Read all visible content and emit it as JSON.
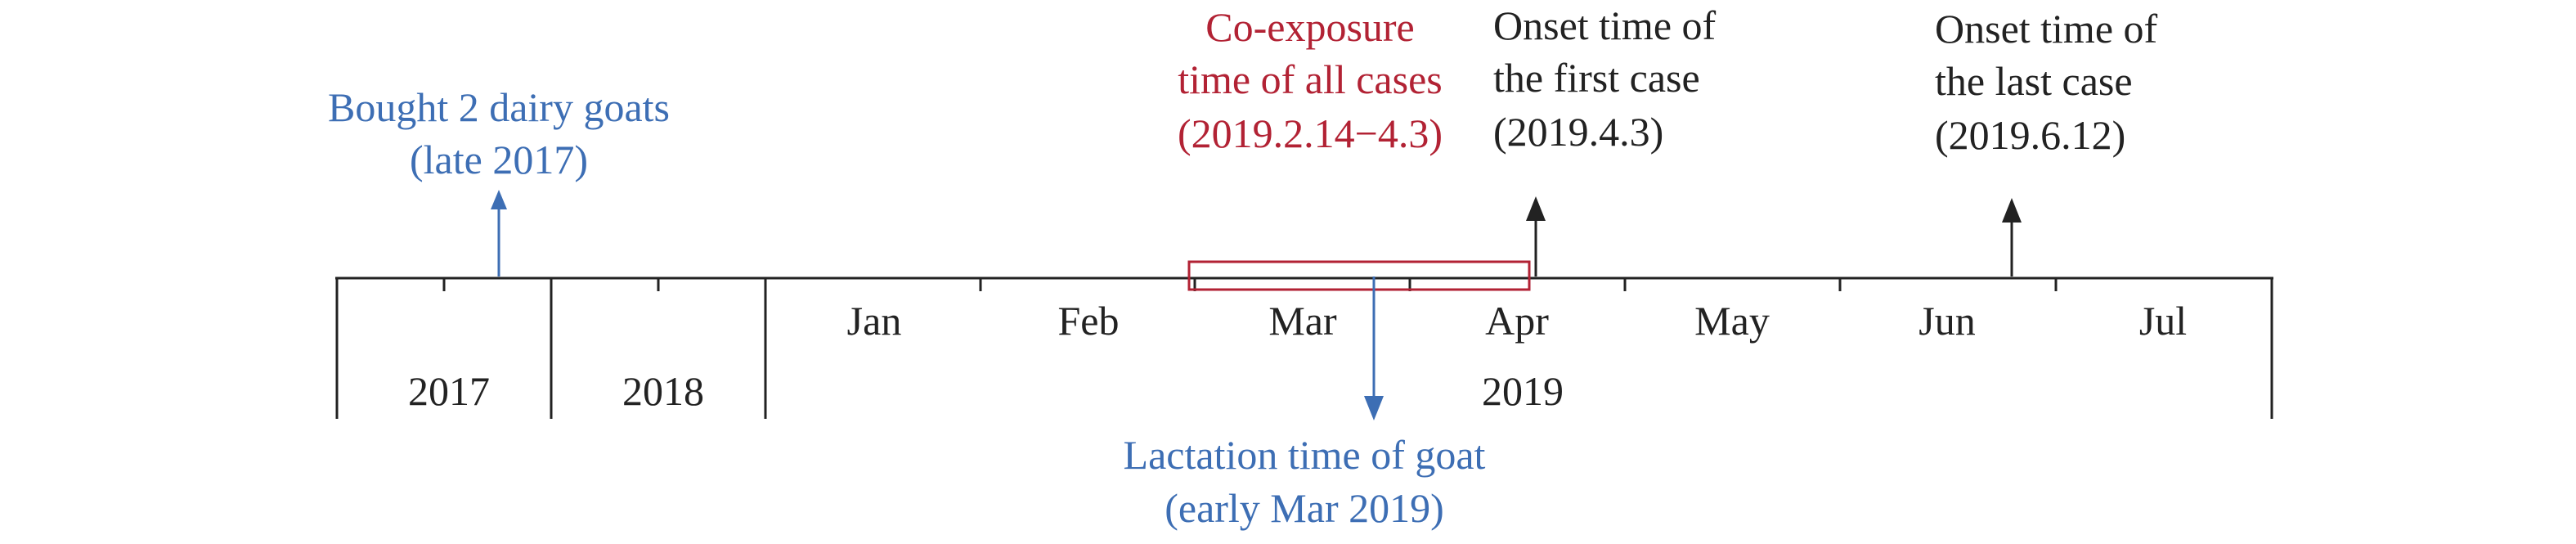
{
  "years": [
    "2017",
    "2018",
    "2019"
  ],
  "months": [
    "Jan",
    "Feb",
    "Mar",
    "Apr",
    "May",
    "Jun",
    "Jul"
  ],
  "events": {
    "bought_goats": {
      "line1": "Bought 2 dairy goats",
      "line2": "(late 2017)",
      "color": "#3d6eb4"
    },
    "co_exposure": {
      "line1": "Co-exposure",
      "line2": "time of all cases",
      "line3": "(2019.2.14−4.3)",
      "color": "#b22234"
    },
    "first_onset": {
      "line1": "Onset time of",
      "line2": "the first case",
      "line3": "(2019.4.3)",
      "color": "#222222"
    },
    "last_onset": {
      "line1": "Onset time of",
      "line2": "the last case",
      "line3": "(2019.6.12)",
      "color": "#222222"
    },
    "lactation": {
      "line1": "Lactation time of goat",
      "line2": "(early Mar 2019)",
      "color": "#3d6eb4"
    }
  },
  "colors": {
    "axis": "#222222",
    "blue": "#3d6eb4",
    "red": "#b22234"
  }
}
